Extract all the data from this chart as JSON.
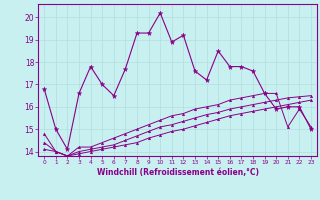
{
  "xlabel": "Windchill (Refroidissement éolien,°C)",
  "background_color": "#c8f0f0",
  "grid_color": "#b0dede",
  "line_color": "#880088",
  "xlim": [
    -0.5,
    23.5
  ],
  "ylim": [
    13.8,
    20.6
  ],
  "yticks": [
    14,
    15,
    16,
    17,
    18,
    19,
    20
  ],
  "xticks": [
    0,
    1,
    2,
    3,
    4,
    5,
    6,
    7,
    8,
    9,
    10,
    11,
    12,
    13,
    14,
    15,
    16,
    17,
    18,
    19,
    20,
    21,
    22,
    23
  ],
  "series1_x": [
    0,
    1,
    2,
    3,
    4,
    5,
    6,
    7,
    8,
    9,
    10,
    11,
    12,
    13,
    14,
    15,
    16,
    17,
    18,
    19,
    20,
    21,
    22,
    23
  ],
  "series1_y": [
    16.8,
    15.0,
    14.1,
    16.6,
    17.8,
    17.0,
    16.5,
    17.7,
    19.3,
    19.3,
    20.2,
    18.9,
    19.2,
    17.6,
    17.2,
    18.5,
    17.8,
    17.8,
    17.6,
    16.6,
    15.9,
    16.0,
    16.0,
    15.0
  ],
  "series2_x": [
    0,
    1,
    2,
    3,
    4,
    5,
    6,
    7,
    8,
    9,
    10,
    11,
    12,
    13,
    14,
    15,
    16,
    17,
    18,
    19,
    20,
    21,
    22,
    23
  ],
  "series2_y": [
    14.8,
    14.0,
    13.8,
    14.2,
    14.2,
    14.4,
    14.6,
    14.8,
    15.0,
    15.2,
    15.4,
    15.6,
    15.7,
    15.9,
    16.0,
    16.1,
    16.3,
    16.4,
    16.5,
    16.6,
    16.6,
    15.1,
    15.9,
    15.1
  ],
  "series3_x": [
    0,
    1,
    2,
    3,
    4,
    5,
    6,
    7,
    8,
    9,
    10,
    11,
    12,
    13,
    14,
    15,
    16,
    17,
    18,
    19,
    20,
    21,
    22,
    23
  ],
  "series3_y": [
    14.4,
    14.0,
    13.8,
    14.0,
    14.1,
    14.2,
    14.3,
    14.5,
    14.7,
    14.9,
    15.1,
    15.2,
    15.35,
    15.5,
    15.65,
    15.75,
    15.9,
    16.0,
    16.1,
    16.2,
    16.3,
    16.4,
    16.45,
    16.5
  ],
  "series4_x": [
    0,
    1,
    2,
    3,
    4,
    5,
    6,
    7,
    8,
    9,
    10,
    11,
    12,
    13,
    14,
    15,
    16,
    17,
    18,
    19,
    20,
    21,
    22,
    23
  ],
  "series4_y": [
    14.1,
    14.0,
    13.8,
    13.9,
    14.0,
    14.1,
    14.2,
    14.3,
    14.4,
    14.6,
    14.75,
    14.9,
    15.0,
    15.15,
    15.3,
    15.45,
    15.6,
    15.7,
    15.8,
    15.9,
    16.0,
    16.1,
    16.2,
    16.3
  ]
}
